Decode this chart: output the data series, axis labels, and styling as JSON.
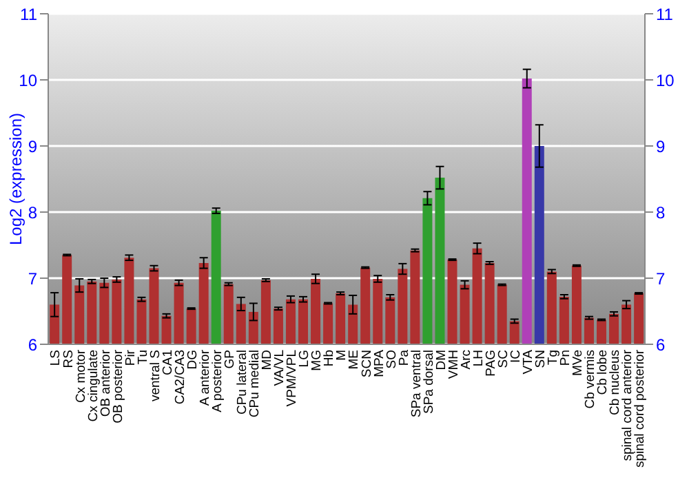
{
  "chart_data": {
    "type": "bar",
    "ylabel": "Log2 (expression)",
    "categories": [
      "LS",
      "RS",
      "Cx motor",
      "Cx cingulate",
      "OB anterior",
      "OB posterior",
      "Pir",
      "Tu",
      "ventral S",
      "CA1",
      "CA2/CA3",
      "DG",
      "A anterior",
      "A posterior",
      "GP",
      "CPu lateral",
      "CPu medial",
      "MD",
      "VA/VL",
      "VPM/VPL",
      "LG",
      "MG",
      "Hb",
      "M",
      "ME",
      "SCN",
      "MPA",
      "SO",
      "Pa",
      "SPa ventral",
      "SPa dorsal",
      "DM",
      "VMH",
      "Arc",
      "LH",
      "PAG",
      "SC",
      "IC",
      "VTA",
      "SN",
      "Tg",
      "Pn",
      "MVe",
      "Cb vermis",
      "Cb lobe",
      "Cb nucleus",
      "spinal cord anterior",
      "spinal cord posterior"
    ],
    "values": [
      6.6,
      7.35,
      6.89,
      6.95,
      6.93,
      6.98,
      7.31,
      6.68,
      7.15,
      6.43,
      6.93,
      6.54,
      7.23,
      8.02,
      6.91,
      6.61,
      6.49,
      6.97,
      6.54,
      6.68,
      6.68,
      6.99,
      6.62,
      6.77,
      6.6,
      7.16,
      6.99,
      6.71,
      7.14,
      7.42,
      8.21,
      8.52,
      7.28,
      6.9,
      7.45,
      7.23,
      6.9,
      6.35,
      10.02,
      9.0,
      7.1,
      6.72,
      7.19,
      6.4,
      6.37,
      6.46,
      6.6,
      6.77
    ],
    "errors": [
      0.18,
      0.01,
      0.1,
      0.03,
      0.07,
      0.04,
      0.04,
      0.03,
      0.04,
      0.03,
      0.04,
      0.01,
      0.08,
      0.04,
      0.02,
      0.1,
      0.13,
      0.02,
      0.02,
      0.05,
      0.04,
      0.07,
      0.01,
      0.02,
      0.14,
      0.01,
      0.05,
      0.04,
      0.08,
      0.02,
      0.1,
      0.17,
      0.01,
      0.06,
      0.08,
      0.02,
      0.01,
      0.03,
      0.14,
      0.32,
      0.03,
      0.03,
      0.01,
      0.02,
      0.01,
      0.03,
      0.06,
      0.01
    ],
    "colors": [
      "#b03030",
      "#b03030",
      "#b03030",
      "#b03030",
      "#b03030",
      "#b03030",
      "#b03030",
      "#b03030",
      "#b03030",
      "#b03030",
      "#b03030",
      "#b03030",
      "#b03030",
      "#2fa02f",
      "#b03030",
      "#b03030",
      "#b03030",
      "#b03030",
      "#b03030",
      "#b03030",
      "#b03030",
      "#b03030",
      "#b03030",
      "#b03030",
      "#b03030",
      "#b03030",
      "#b03030",
      "#b03030",
      "#b03030",
      "#b03030",
      "#2fa02f",
      "#2fa02f",
      "#b03030",
      "#b03030",
      "#b03030",
      "#b03030",
      "#b03030",
      "#b03030",
      "#b040b8",
      "#3838a8",
      "#b03030",
      "#b03030",
      "#b03030",
      "#b03030",
      "#b03030",
      "#b03030",
      "#b03030",
      "#b03030"
    ],
    "ylim": [
      6,
      11
    ],
    "yticks": [
      6,
      7,
      8,
      9,
      10,
      11
    ],
    "y2lim": [
      6,
      11
    ],
    "y2ticks": [
      6,
      7,
      8,
      9,
      10,
      11
    ],
    "grid": "y"
  }
}
